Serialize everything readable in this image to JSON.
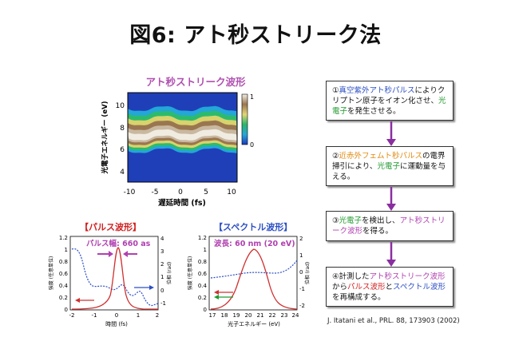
{
  "title": "図6: アト秒ストリーク法",
  "streak_plot": {
    "title": "アト秒ストリーク波形",
    "ylabel": "光電子エネルギー (eV)",
    "xlabel": "遅延時間 (fs)",
    "xticks": [
      "-10",
      "-5",
      "0",
      "5",
      "10"
    ],
    "yticks": [
      "4",
      "6",
      "8",
      "10"
    ],
    "colorbar_ticks": [
      "1",
      "0"
    ]
  },
  "pulse_plot": {
    "title": "【パルス波形】",
    "annotation": "パルス幅: 660 as",
    "ylabel_left": "強度 (任意単位)",
    "ylabel_right": "位相 (rad)",
    "xlabel": "時間 (fs)",
    "xticks": [
      "-2",
      "-1",
      "0",
      "1",
      "2"
    ],
    "yticks_left": [
      "0",
      "0.2",
      "0.4",
      "0.6",
      "0.8",
      "1",
      "1.2"
    ],
    "yticks_right": [
      "-1",
      "0",
      "1",
      "2",
      "3",
      "4"
    ]
  },
  "spectrum_plot": {
    "title": "【スペクトル波形】",
    "annotation": "波長: 60 nm (20 eV)",
    "ylabel_left": "強度 (任意単位)",
    "ylabel_right": "位相 (rad)",
    "xlabel": "光子エネルギー (eV)",
    "xticks": [
      "17",
      "18",
      "19",
      "20",
      "21",
      "22",
      "23",
      "24"
    ],
    "yticks_left": [
      "0",
      "0.2",
      "0.4",
      "0.6",
      "0.8",
      "1",
      "1.2"
    ],
    "yticks_right": [
      "-2",
      "-1",
      "0",
      "1",
      "2"
    ]
  },
  "steps": [
    {
      "parts": [
        {
          "text": "①",
          "color": "dark"
        },
        {
          "text": "真空紫外アト秒パルス",
          "color": "blue"
        },
        {
          "text": "により",
          "color": "dark"
        },
        {
          "text": "クリプトン原子をイオン化させ、",
          "color": "dark"
        },
        {
          "text": "光電子",
          "color": "green"
        },
        {
          "text": "を発生させる。",
          "color": "dark"
        }
      ]
    },
    {
      "parts": [
        {
          "text": "②",
          "color": "dark"
        },
        {
          "text": "近赤外フェムト秒パルス",
          "color": "orange"
        },
        {
          "text": "の電界掃引により、",
          "color": "dark"
        },
        {
          "text": "光電子",
          "color": "green"
        },
        {
          "text": "に運動量を与える。",
          "color": "dark"
        }
      ]
    },
    {
      "parts": [
        {
          "text": "③",
          "color": "dark"
        },
        {
          "text": "光電子",
          "color": "green"
        },
        {
          "text": "を検出し、",
          "color": "dark"
        },
        {
          "text": "アト秒ストリーク波形",
          "color": "purple"
        },
        {
          "text": "を得る。",
          "color": "dark"
        }
      ]
    },
    {
      "parts": [
        {
          "text": "④計測した",
          "color": "dark"
        },
        {
          "text": "アト秒ストリーク波形",
          "color": "purple"
        },
        {
          "text": "から",
          "color": "dark"
        },
        {
          "text": "パルス波形",
          "color": "red"
        },
        {
          "text": "と",
          "color": "dark"
        },
        {
          "text": "スペクトル波形",
          "color": "blue"
        },
        {
          "text": "を再構成する。",
          "color": "dark"
        }
      ]
    }
  ],
  "citation": "J. Itatani et al., PRL. 88, 173903 (2002)",
  "colors": {
    "arrow": "#8a2ea0",
    "pulse": "#d03030",
    "phase": "#2c4fc4",
    "green_arrow": "#1f9a2e"
  }
}
